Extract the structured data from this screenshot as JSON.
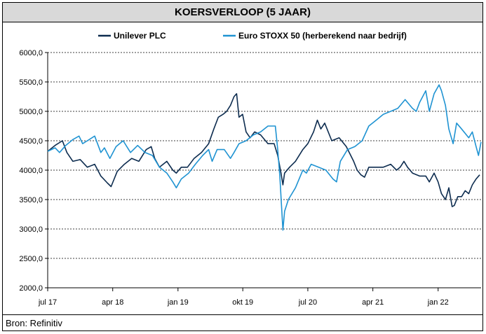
{
  "title": "KOERSVERLOOP (5 JAAR)",
  "source": "Bron: Refinitiv",
  "colors": {
    "unilever": "#0d2c4f",
    "stoxx": "#1f93d2",
    "grid": "#000000"
  },
  "chart_data": {
    "type": "line",
    "ylim": [
      2000,
      6000
    ],
    "yticks": [
      2000,
      2500,
      3000,
      3500,
      4000,
      4500,
      5000,
      5500,
      6000
    ],
    "ytick_labels": [
      "2000,0",
      "2500,0",
      "3000,0",
      "3500,0",
      "4000,0",
      "4500,0",
      "5000,0",
      "5500,0",
      "6000,0"
    ],
    "xlim": [
      "2017-07-01",
      "2022-07-01"
    ],
    "xticks": [
      "2017-07-01",
      "2018-04-01",
      "2019-01-01",
      "2019-10-01",
      "2020-07-01",
      "2021-04-01",
      "2022-01-01"
    ],
    "xtick_labels": [
      "jul 17",
      "apr 18",
      "jan 19",
      "okt 19",
      "jul 20",
      "apr 21",
      "jan 22"
    ],
    "grid": "horizontal-dashed",
    "legend": "top",
    "series": [
      {
        "name": "Unilever PLC",
        "color": "#0d2c4f",
        "points": [
          [
            "2017-07-01",
            4320
          ],
          [
            "2017-08-01",
            4420
          ],
          [
            "2017-09-01",
            4500
          ],
          [
            "2017-09-20",
            4300
          ],
          [
            "2017-10-15",
            4150
          ],
          [
            "2017-11-15",
            4180
          ],
          [
            "2017-12-15",
            4050
          ],
          [
            "2018-01-15",
            4100
          ],
          [
            "2018-02-10",
            3900
          ],
          [
            "2018-03-10",
            3780
          ],
          [
            "2018-03-25",
            3720
          ],
          [
            "2018-04-20",
            3980
          ],
          [
            "2018-05-20",
            4100
          ],
          [
            "2018-06-20",
            4200
          ],
          [
            "2018-07-20",
            4150
          ],
          [
            "2018-08-20",
            4350
          ],
          [
            "2018-09-10",
            4400
          ],
          [
            "2018-09-25",
            4200
          ],
          [
            "2018-10-15",
            4050
          ],
          [
            "2018-11-15",
            4150
          ],
          [
            "2018-12-10",
            4000
          ],
          [
            "2018-12-25",
            3950
          ],
          [
            "2019-01-15",
            4050
          ],
          [
            "2019-02-10",
            4050
          ],
          [
            "2019-03-10",
            4200
          ],
          [
            "2019-04-10",
            4300
          ],
          [
            "2019-05-10",
            4450
          ],
          [
            "2019-06-01",
            4700
          ],
          [
            "2019-06-20",
            4900
          ],
          [
            "2019-07-10",
            4950
          ],
          [
            "2019-07-25",
            5000
          ],
          [
            "2019-08-10",
            5100
          ],
          [
            "2019-08-25",
            5250
          ],
          [
            "2019-09-05",
            5300
          ],
          [
            "2019-09-15",
            4900
          ],
          [
            "2019-09-30",
            4950
          ],
          [
            "2019-10-15",
            4650
          ],
          [
            "2019-11-01",
            4550
          ],
          [
            "2019-11-20",
            4650
          ],
          [
            "2019-12-15",
            4600
          ],
          [
            "2020-01-15",
            4450
          ],
          [
            "2020-02-10",
            4450
          ],
          [
            "2020-02-25",
            4250
          ],
          [
            "2020-03-10",
            3950
          ],
          [
            "2020-03-18",
            3750
          ],
          [
            "2020-03-25",
            3950
          ],
          [
            "2020-04-15",
            4050
          ],
          [
            "2020-05-10",
            4150
          ],
          [
            "2020-06-10",
            4350
          ],
          [
            "2020-07-01",
            4450
          ],
          [
            "2020-07-25",
            4650
          ],
          [
            "2020-08-10",
            4850
          ],
          [
            "2020-08-25",
            4700
          ],
          [
            "2020-09-10",
            4800
          ],
          [
            "2020-10-10",
            4500
          ],
          [
            "2020-11-10",
            4550
          ],
          [
            "2020-12-10",
            4400
          ],
          [
            "2021-01-10",
            4150
          ],
          [
            "2021-01-25",
            4000
          ],
          [
            "2021-02-10",
            3920
          ],
          [
            "2021-02-25",
            3880
          ],
          [
            "2021-03-15",
            4050
          ],
          [
            "2021-04-15",
            4050
          ],
          [
            "2021-05-15",
            4050
          ],
          [
            "2021-06-15",
            4100
          ],
          [
            "2021-07-10",
            4000
          ],
          [
            "2021-07-25",
            4050
          ],
          [
            "2021-08-10",
            4150
          ],
          [
            "2021-08-25",
            4050
          ],
          [
            "2021-09-15",
            3950
          ],
          [
            "2021-10-15",
            3900
          ],
          [
            "2021-11-10",
            3900
          ],
          [
            "2021-11-25",
            3800
          ],
          [
            "2021-12-15",
            3950
          ],
          [
            "2022-01-01",
            3800
          ],
          [
            "2022-01-15",
            3600
          ],
          [
            "2022-02-01",
            3500
          ],
          [
            "2022-02-15",
            3700
          ],
          [
            "2022-03-01",
            3380
          ],
          [
            "2022-03-10",
            3400
          ],
          [
            "2022-03-25",
            3550
          ],
          [
            "2022-04-10",
            3550
          ],
          [
            "2022-04-25",
            3650
          ],
          [
            "2022-05-10",
            3600
          ],
          [
            "2022-05-25",
            3750
          ],
          [
            "2022-06-10",
            3850
          ],
          [
            "2022-06-25",
            3920
          ]
        ]
      },
      {
        "name": "Euro STOXX 50 (herberekend naar bedrijf)",
        "color": "#1f93d2",
        "points": [
          [
            "2017-07-01",
            4320
          ],
          [
            "2017-08-01",
            4380
          ],
          [
            "2017-08-20",
            4300
          ],
          [
            "2017-09-15",
            4420
          ],
          [
            "2017-10-15",
            4520
          ],
          [
            "2017-11-10",
            4580
          ],
          [
            "2017-11-25",
            4450
          ],
          [
            "2017-12-15",
            4500
          ],
          [
            "2018-01-15",
            4580
          ],
          [
            "2018-02-10",
            4300
          ],
          [
            "2018-02-25",
            4380
          ],
          [
            "2018-03-20",
            4200
          ],
          [
            "2018-04-15",
            4400
          ],
          [
            "2018-05-15",
            4500
          ],
          [
            "2018-06-15",
            4300
          ],
          [
            "2018-07-15",
            4420
          ],
          [
            "2018-08-15",
            4300
          ],
          [
            "2018-09-15",
            4250
          ],
          [
            "2018-10-15",
            4050
          ],
          [
            "2018-11-15",
            3950
          ],
          [
            "2018-12-10",
            3800
          ],
          [
            "2018-12-25",
            3700
          ],
          [
            "2019-01-15",
            3850
          ],
          [
            "2019-02-15",
            3950
          ],
          [
            "2019-03-15",
            4100
          ],
          [
            "2019-04-15",
            4250
          ],
          [
            "2019-05-10",
            4350
          ],
          [
            "2019-05-25",
            4150
          ],
          [
            "2019-06-15",
            4350
          ],
          [
            "2019-07-15",
            4350
          ],
          [
            "2019-08-10",
            4200
          ],
          [
            "2019-08-25",
            4300
          ],
          [
            "2019-09-15",
            4450
          ],
          [
            "2019-10-15",
            4500
          ],
          [
            "2019-11-15",
            4600
          ],
          [
            "2019-12-15",
            4650
          ],
          [
            "2020-01-15",
            4750
          ],
          [
            "2020-02-15",
            4750
          ],
          [
            "2020-02-25",
            4350
          ],
          [
            "2020-03-05",
            3900
          ],
          [
            "2020-03-12",
            3400
          ],
          [
            "2020-03-18",
            2980
          ],
          [
            "2020-03-25",
            3300
          ],
          [
            "2020-04-10",
            3500
          ],
          [
            "2020-05-10",
            3700
          ],
          [
            "2020-06-10",
            4000
          ],
          [
            "2020-06-25",
            3950
          ],
          [
            "2020-07-15",
            4100
          ],
          [
            "2020-08-15",
            4050
          ],
          [
            "2020-09-15",
            4000
          ],
          [
            "2020-10-15",
            3850
          ],
          [
            "2020-10-30",
            3800
          ],
          [
            "2020-11-15",
            4150
          ],
          [
            "2020-12-15",
            4350
          ],
          [
            "2021-01-15",
            4400
          ],
          [
            "2021-02-15",
            4500
          ],
          [
            "2021-03-15",
            4750
          ],
          [
            "2021-04-15",
            4850
          ],
          [
            "2021-05-15",
            4950
          ],
          [
            "2021-06-15",
            5000
          ],
          [
            "2021-07-15",
            5050
          ],
          [
            "2021-08-15",
            5200
          ],
          [
            "2021-09-15",
            5050
          ],
          [
            "2021-10-01",
            5000
          ],
          [
            "2021-10-15",
            5150
          ],
          [
            "2021-11-10",
            5350
          ],
          [
            "2021-11-25",
            5000
          ],
          [
            "2021-12-15",
            5300
          ],
          [
            "2022-01-05",
            5450
          ],
          [
            "2022-01-15",
            5350
          ],
          [
            "2022-02-01",
            5100
          ],
          [
            "2022-02-15",
            4700
          ],
          [
            "2022-03-05",
            4450
          ],
          [
            "2022-03-20",
            4800
          ],
          [
            "2022-04-10",
            4700
          ],
          [
            "2022-05-10",
            4550
          ],
          [
            "2022-05-25",
            4650
          ],
          [
            "2022-06-10",
            4400
          ],
          [
            "2022-06-20",
            4250
          ],
          [
            "2022-07-01",
            4480
          ]
        ]
      }
    ]
  }
}
